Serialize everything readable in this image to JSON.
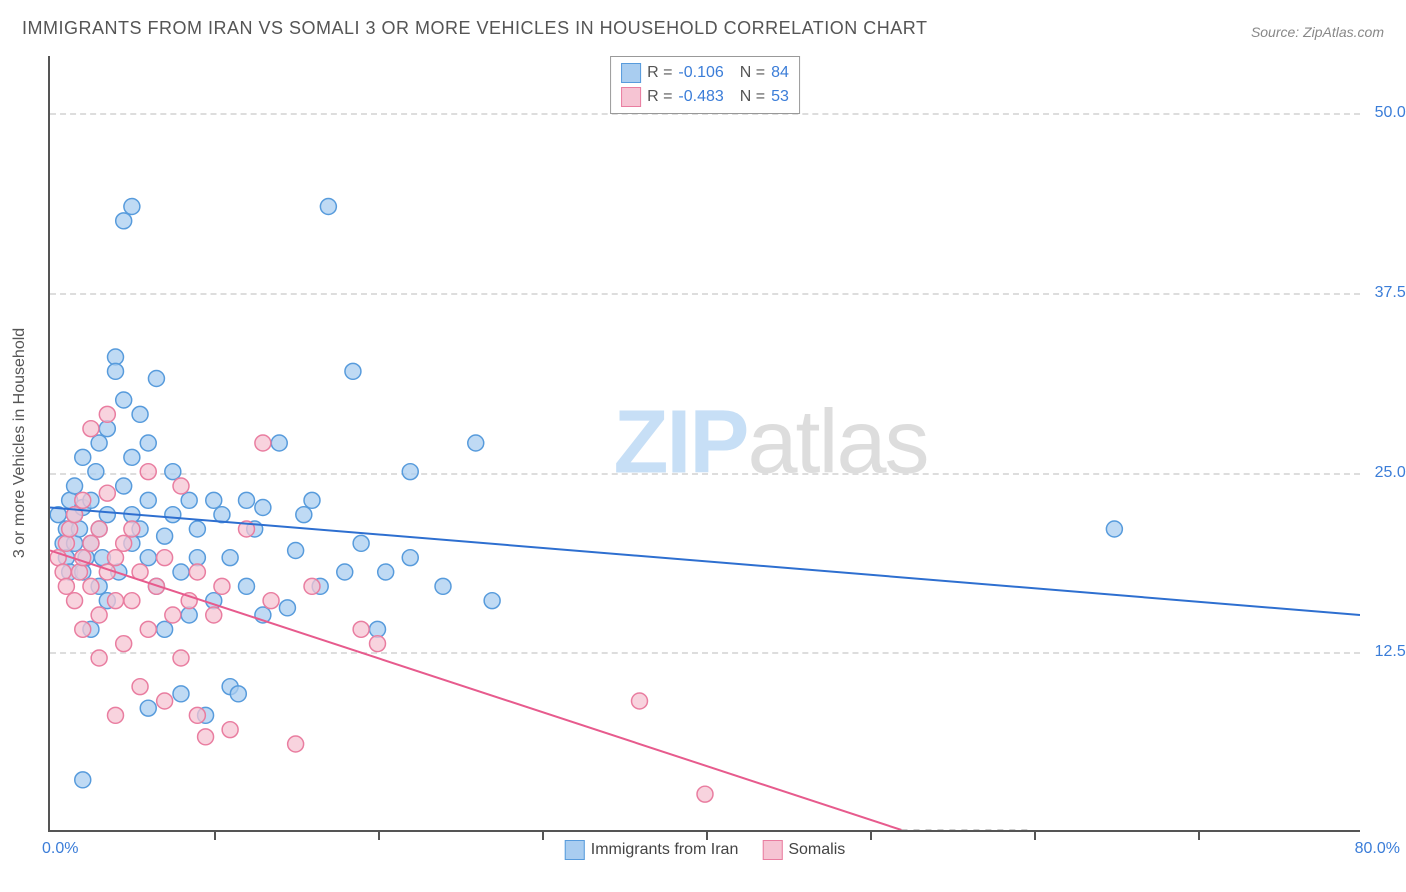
{
  "title": "IMMIGRANTS FROM IRAN VS SOMALI 3 OR MORE VEHICLES IN HOUSEHOLD CORRELATION CHART",
  "source_label": "Source:",
  "source_value": "ZipAtlas.com",
  "ylabel": "3 or more Vehicles in Household",
  "watermark_a": "ZIP",
  "watermark_b": "atlas",
  "chart": {
    "type": "scatter",
    "xlim": [
      0,
      80
    ],
    "ylim": [
      0,
      54
    ],
    "xaxis_start": "0.0%",
    "xaxis_end": "80.0%",
    "xticks": [
      10,
      20,
      30,
      40,
      50,
      60,
      70
    ],
    "yticks": [
      {
        "v": 12.5,
        "label": "12.5%"
      },
      {
        "v": 25.0,
        "label": "25.0%"
      },
      {
        "v": 37.5,
        "label": "37.5%"
      },
      {
        "v": 50.0,
        "label": "50.0%"
      }
    ],
    "tick_label_color": "#3b7dd8",
    "background_color": "#ffffff",
    "grid_color": "#dddddd",
    "series": [
      {
        "name": "Immigrants from Iran",
        "color_fill": "#a9cdf0",
        "color_stroke": "#579bdc",
        "marker_radius": 8,
        "r": "-0.106",
        "n": "84",
        "trend": {
          "x1": 0,
          "y1": 22.5,
          "x2": 80,
          "y2": 15.0,
          "color": "#2e6fd0",
          "width": 2
        },
        "points": [
          [
            0.5,
            22
          ],
          [
            0.8,
            20
          ],
          [
            1,
            21
          ],
          [
            1,
            19
          ],
          [
            1.2,
            23
          ],
          [
            1.2,
            18
          ],
          [
            1.5,
            20
          ],
          [
            1.5,
            22
          ],
          [
            1.5,
            24
          ],
          [
            1.8,
            21
          ],
          [
            2,
            22.5
          ],
          [
            2,
            26
          ],
          [
            2,
            18
          ],
          [
            2,
            3.5
          ],
          [
            2.2,
            19
          ],
          [
            2.5,
            23
          ],
          [
            2.5,
            20
          ],
          [
            2.8,
            25
          ],
          [
            3,
            17
          ],
          [
            3,
            27
          ],
          [
            3,
            21
          ],
          [
            3.2,
            19
          ],
          [
            3.5,
            28
          ],
          [
            3.5,
            22
          ],
          [
            4,
            33
          ],
          [
            4,
            32
          ],
          [
            4.2,
            18
          ],
          [
            4.5,
            24
          ],
          [
            4.5,
            30
          ],
          [
            4.5,
            42.5
          ],
          [
            5,
            20
          ],
          [
            5,
            26
          ],
          [
            5,
            22
          ],
          [
            5,
            43.5
          ],
          [
            5.5,
            29
          ],
          [
            5.5,
            21
          ],
          [
            6,
            19
          ],
          [
            6,
            23
          ],
          [
            6,
            27
          ],
          [
            6,
            8.5
          ],
          [
            6.5,
            17
          ],
          [
            6.5,
            31.5
          ],
          [
            7,
            20.5
          ],
          [
            7,
            14
          ],
          [
            7.5,
            25
          ],
          [
            7.5,
            22
          ],
          [
            8,
            9.5
          ],
          [
            8,
            18
          ],
          [
            8.5,
            23
          ],
          [
            8.5,
            15
          ],
          [
            9,
            19
          ],
          [
            9,
            21
          ],
          [
            9.5,
            8
          ],
          [
            10,
            16
          ],
          [
            10,
            23
          ],
          [
            10.5,
            22
          ],
          [
            11,
            19
          ],
          [
            11,
            10
          ],
          [
            11.5,
            9.5
          ],
          [
            12,
            17
          ],
          [
            12,
            23
          ],
          [
            12.5,
            21
          ],
          [
            13,
            15
          ],
          [
            13,
            22.5
          ],
          [
            14,
            27
          ],
          [
            14.5,
            15.5
          ],
          [
            15,
            19.5
          ],
          [
            15.5,
            22
          ],
          [
            16,
            23
          ],
          [
            16.5,
            17
          ],
          [
            17,
            43.5
          ],
          [
            18,
            18
          ],
          [
            18.5,
            32
          ],
          [
            19,
            20
          ],
          [
            20,
            14
          ],
          [
            20.5,
            18
          ],
          [
            22,
            19
          ],
          [
            22,
            25
          ],
          [
            24,
            17
          ],
          [
            26,
            27
          ],
          [
            27,
            16
          ],
          [
            65,
            21
          ],
          [
            2.5,
            14
          ],
          [
            3.5,
            16
          ]
        ]
      },
      {
        "name": "Somalis",
        "color_fill": "#f6c4d3",
        "color_stroke": "#e97da0",
        "marker_radius": 8,
        "r": "-0.483",
        "n": "53",
        "trend": {
          "x1": 0,
          "y1": 19.5,
          "x2": 52,
          "y2": 0.0,
          "color": "#e75b8d",
          "width": 2
        },
        "trend_dashed": {
          "x1": 52,
          "y1": 0.0,
          "x2": 60,
          "y2": 0.0,
          "color": "#cccccc",
          "width": 2
        },
        "points": [
          [
            0.5,
            19
          ],
          [
            0.8,
            18
          ],
          [
            1,
            20
          ],
          [
            1,
            17
          ],
          [
            1.2,
            21
          ],
          [
            1.5,
            16
          ],
          [
            1.5,
            22
          ],
          [
            1.8,
            18
          ],
          [
            2,
            19
          ],
          [
            2,
            14
          ],
          [
            2,
            23
          ],
          [
            2.5,
            20
          ],
          [
            2.5,
            17
          ],
          [
            2.5,
            28
          ],
          [
            3,
            15
          ],
          [
            3,
            21
          ],
          [
            3,
            12
          ],
          [
            3.5,
            23.5
          ],
          [
            3.5,
            18
          ],
          [
            4,
            8
          ],
          [
            4,
            16
          ],
          [
            4,
            19
          ],
          [
            4.5,
            13
          ],
          [
            4.5,
            20
          ],
          [
            5,
            16
          ],
          [
            5,
            21
          ],
          [
            5.5,
            10
          ],
          [
            5.5,
            18
          ],
          [
            6,
            14
          ],
          [
            6,
            25
          ],
          [
            6.5,
            17
          ],
          [
            7,
            9
          ],
          [
            7,
            19
          ],
          [
            7.5,
            15
          ],
          [
            8,
            24
          ],
          [
            8,
            12
          ],
          [
            8.5,
            16
          ],
          [
            9,
            8
          ],
          [
            9,
            18
          ],
          [
            9.5,
            6.5
          ],
          [
            10,
            15
          ],
          [
            10.5,
            17
          ],
          [
            11,
            7
          ],
          [
            12,
            21
          ],
          [
            13,
            27
          ],
          [
            13.5,
            16
          ],
          [
            15,
            6
          ],
          [
            16,
            17
          ],
          [
            19,
            14
          ],
          [
            20,
            13
          ],
          [
            36,
            9
          ],
          [
            40,
            2.5
          ],
          [
            3.5,
            29
          ]
        ]
      }
    ],
    "legend_bottom": [
      {
        "label": "Immigrants from Iran",
        "fill": "#a9cdf0",
        "stroke": "#579bdc"
      },
      {
        "label": "Somalis",
        "fill": "#f6c4d3",
        "stroke": "#e97da0"
      }
    ]
  }
}
